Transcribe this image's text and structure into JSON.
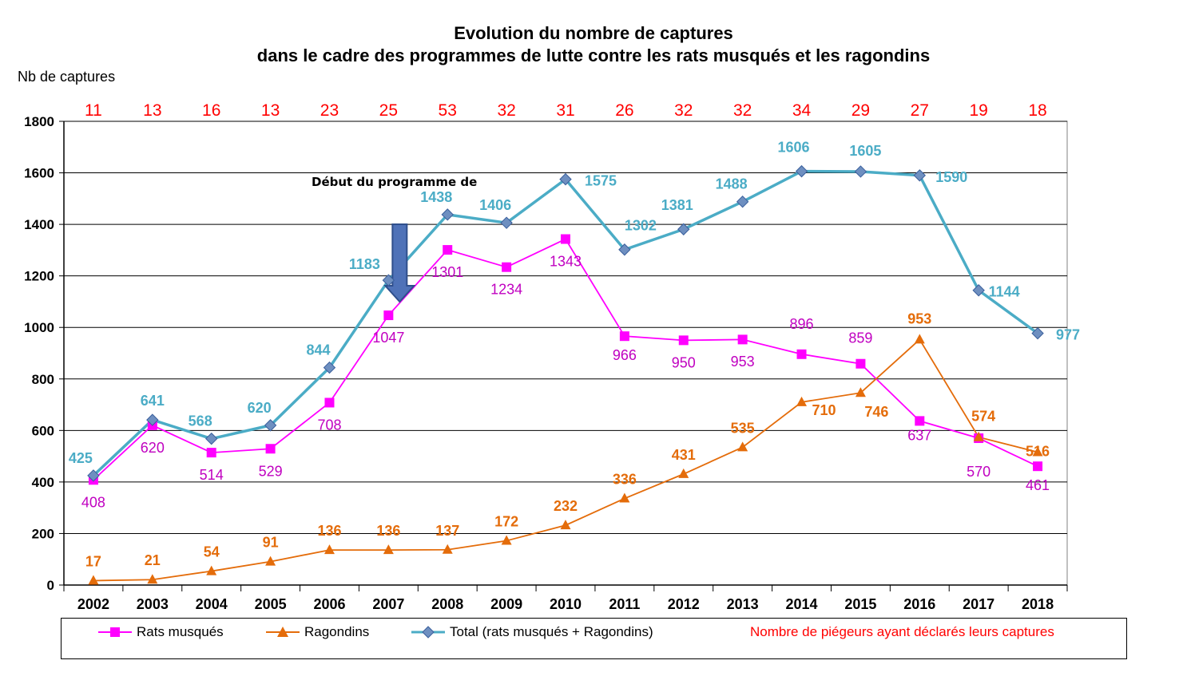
{
  "chart_data": {
    "type": "line",
    "title": [
      "Evolution du nombre de captures",
      "dans le cadre des programmes de lutte contre les rats musqués et les ragondins"
    ],
    "ylabel": "Nb de captures",
    "ylim": [
      0,
      1800
    ],
    "yticks": [
      0,
      200,
      400,
      600,
      800,
      1000,
      1200,
      1400,
      1600,
      1800
    ],
    "grid": true,
    "categories": [
      "2002",
      "2003",
      "2004",
      "2005",
      "2006",
      "2007",
      "2008",
      "2009",
      "2010",
      "2011",
      "2012",
      "2013",
      "2014",
      "2015",
      "2016",
      "2017",
      "2018"
    ],
    "series": [
      {
        "name": "Rats musqués",
        "color": "#ff00ff",
        "label_color": "#c000c0",
        "marker": "square",
        "values": [
          408,
          620,
          514,
          529,
          708,
          1047,
          1301,
          1234,
          1343,
          966,
          950,
          953,
          896,
          859,
          637,
          570,
          461
        ]
      },
      {
        "name": "Ragondins",
        "color": "#e46c0a",
        "label_color": "#e46c0a",
        "marker": "triangle",
        "values": [
          17,
          21,
          54,
          91,
          136,
          136,
          137,
          172,
          232,
          336,
          431,
          535,
          710,
          746,
          953,
          574,
          516
        ]
      },
      {
        "name": "Total (rats musqués + Ragondins)",
        "color": "#4bacc6",
        "label_color": "#4bacc6",
        "marker": "diamond",
        "values": [
          425,
          641,
          568,
          620,
          844,
          1183,
          1438,
          1406,
          1575,
          1302,
          1381,
          1488,
          1606,
          1605,
          1590,
          1144,
          977
        ]
      }
    ],
    "trappers": {
      "name": "Nombre de piégeurs ayant déclarés leurs captures",
      "color": "#ff0000",
      "values": [
        11,
        13,
        16,
        13,
        23,
        25,
        53,
        32,
        31,
        26,
        32,
        32,
        34,
        29,
        27,
        19,
        18
      ]
    },
    "annotation": {
      "text": "Début du programme de",
      "category": "2007"
    },
    "legend_position": "bottom"
  }
}
